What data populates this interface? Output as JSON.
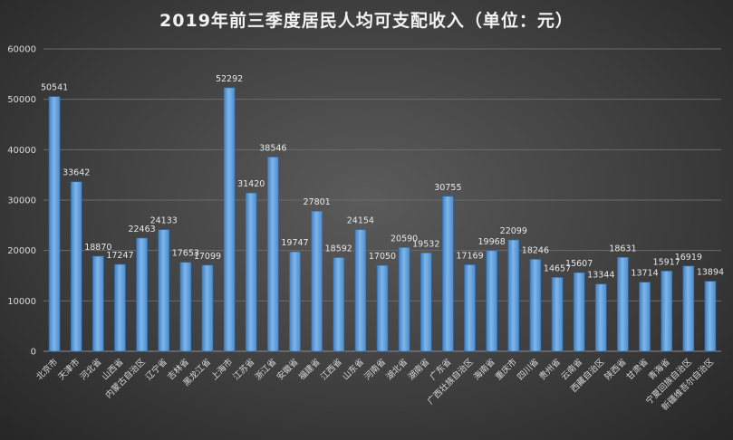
{
  "chart_data": {
    "type": "bar",
    "title": "2019年前三季度居民人均可支配收入（单位：元）",
    "xlabel": "",
    "ylabel": "",
    "ylim": [
      0,
      60000
    ],
    "yticks": [
      0,
      10000,
      20000,
      30000,
      40000,
      50000,
      60000
    ],
    "grid": true,
    "legend": "none",
    "bar_color": "#5b9bd5",
    "categories": [
      "北京市",
      "天津市",
      "河北省",
      "山西省",
      "内蒙古自治区",
      "辽宁省",
      "吉林省",
      "黑龙江省",
      "上海市",
      "江苏省",
      "浙江省",
      "安徽省",
      "福建省",
      "江西省",
      "山东省",
      "河南省",
      "湖北省",
      "湖南省",
      "广东省",
      "广西壮族自治区",
      "海南省",
      "重庆市",
      "四川省",
      "贵州省",
      "云南省",
      "西藏自治区",
      "陕西省",
      "甘肃省",
      "青海省",
      "宁夏回族自治区",
      "新疆维吾尔自治区"
    ],
    "values": [
      50541,
      33642,
      18870,
      17247,
      22463,
      24133,
      17653,
      17099,
      52292,
      31420,
      38546,
      19747,
      27801,
      18592,
      24154,
      17050,
      20590,
      19532,
      30755,
      17169,
      19968,
      22099,
      18246,
      14657,
      15607,
      13344,
      18631,
      13714,
      15917,
      16919,
      13894
    ]
  }
}
